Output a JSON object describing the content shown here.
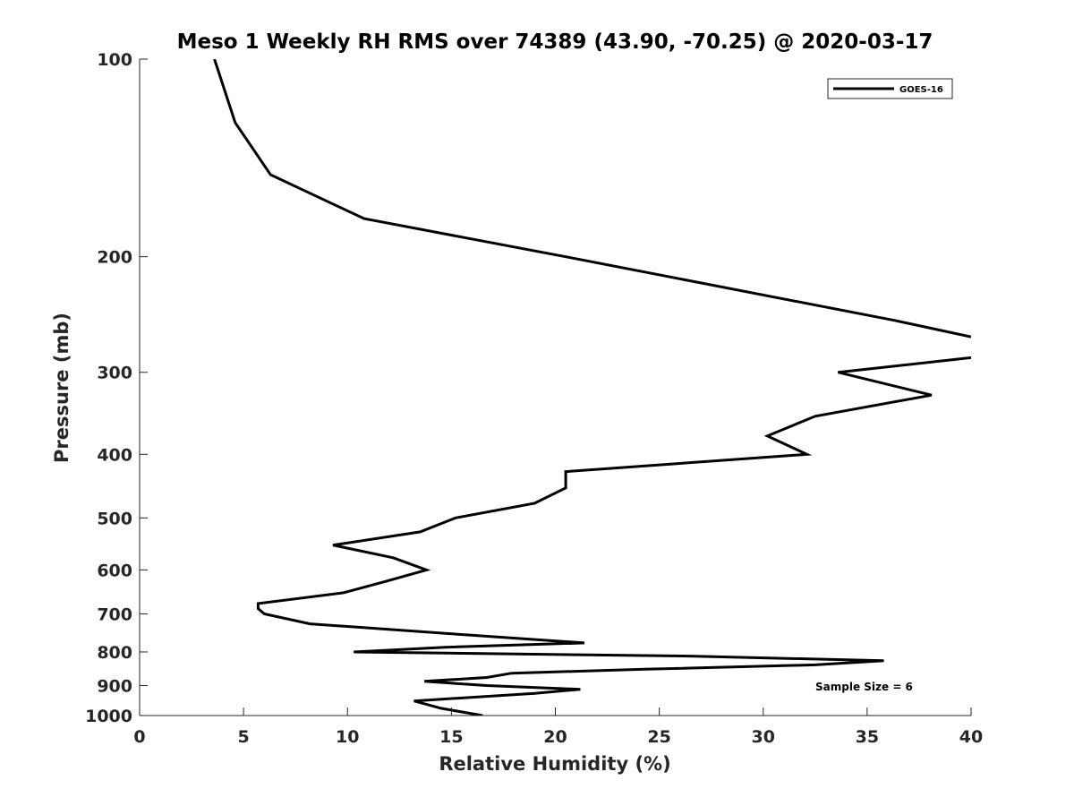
{
  "chart_data": {
    "type": "line",
    "title": "Meso 1 Weekly RH RMS over 74389 (43.90, -70.25) @ 2020-03-17",
    "xlabel": "Relative Humidity (%)",
    "ylabel": "Pressure (mb)",
    "xlim": [
      0,
      40
    ],
    "ylim": [
      100,
      1000
    ],
    "yscale": "log",
    "y_reversed": true,
    "x_ticks": [
      0,
      5,
      10,
      15,
      20,
      25,
      30,
      35,
      40
    ],
    "x_tick_labels": [
      "0",
      "5",
      "10",
      "15",
      "20",
      "25",
      "30",
      "35",
      "40"
    ],
    "y_ticks": [
      100,
      200,
      300,
      400,
      500,
      600,
      700,
      800,
      900,
      1000
    ],
    "y_tick_labels": [
      "100",
      "200",
      "300",
      "400",
      "500",
      "600",
      "700",
      "800",
      "900",
      "1000"
    ],
    "grid": false,
    "legend_position": "top-right",
    "series": [
      {
        "name": "GOES-16",
        "color": "#000000",
        "segments": [
          [
            {
              "x": 3.6,
              "p": 100
            },
            {
              "x": 4.6,
              "p": 125
            },
            {
              "x": 6.3,
              "p": 150
            },
            {
              "x": 10.8,
              "p": 175
            },
            {
              "x": 20.5,
              "p": 200
            },
            {
              "x": 36.3,
              "p": 250
            },
            {
              "x": 40.0,
              "p": 265
            }
          ],
          [
            {
              "x": 40.0,
              "p": 285
            },
            {
              "x": 33.6,
              "p": 300
            },
            {
              "x": 38.1,
              "p": 325
            },
            {
              "x": 32.5,
              "p": 350
            },
            {
              "x": 30.2,
              "p": 375
            },
            {
              "x": 32.1,
              "p": 400
            },
            {
              "x": 20.5,
              "p": 425
            },
            {
              "x": 20.5,
              "p": 450
            },
            {
              "x": 19.0,
              "p": 475
            },
            {
              "x": 15.2,
              "p": 500
            },
            {
              "x": 13.5,
              "p": 525
            },
            {
              "x": 9.3,
              "p": 550
            },
            {
              "x": 12.2,
              "p": 575
            },
            {
              "x": 13.8,
              "p": 600
            },
            {
              "x": 11.8,
              "p": 625
            },
            {
              "x": 9.8,
              "p": 650
            },
            {
              "x": 5.7,
              "p": 675
            },
            {
              "x": 5.7,
              "p": 687
            },
            {
              "x": 6.0,
              "p": 700
            },
            {
              "x": 8.2,
              "p": 725
            },
            {
              "x": 14.8,
              "p": 750
            },
            {
              "x": 21.4,
              "p": 775
            },
            {
              "x": 14.7,
              "p": 787
            },
            {
              "x": 10.3,
              "p": 800
            },
            {
              "x": 26.7,
              "p": 812
            },
            {
              "x": 35.8,
              "p": 825
            },
            {
              "x": 32.5,
              "p": 837
            },
            {
              "x": 24.3,
              "p": 850
            },
            {
              "x": 17.9,
              "p": 862
            },
            {
              "x": 16.7,
              "p": 875
            },
            {
              "x": 13.7,
              "p": 887
            },
            {
              "x": 16.7,
              "p": 900
            },
            {
              "x": 21.2,
              "p": 912
            },
            {
              "x": 19.0,
              "p": 925
            },
            {
              "x": 13.2,
              "p": 950
            },
            {
              "x": 14.5,
              "p": 975
            },
            {
              "x": 16.5,
              "p": 1000
            }
          ]
        ]
      }
    ],
    "annotation": "Sample Size = 6"
  }
}
